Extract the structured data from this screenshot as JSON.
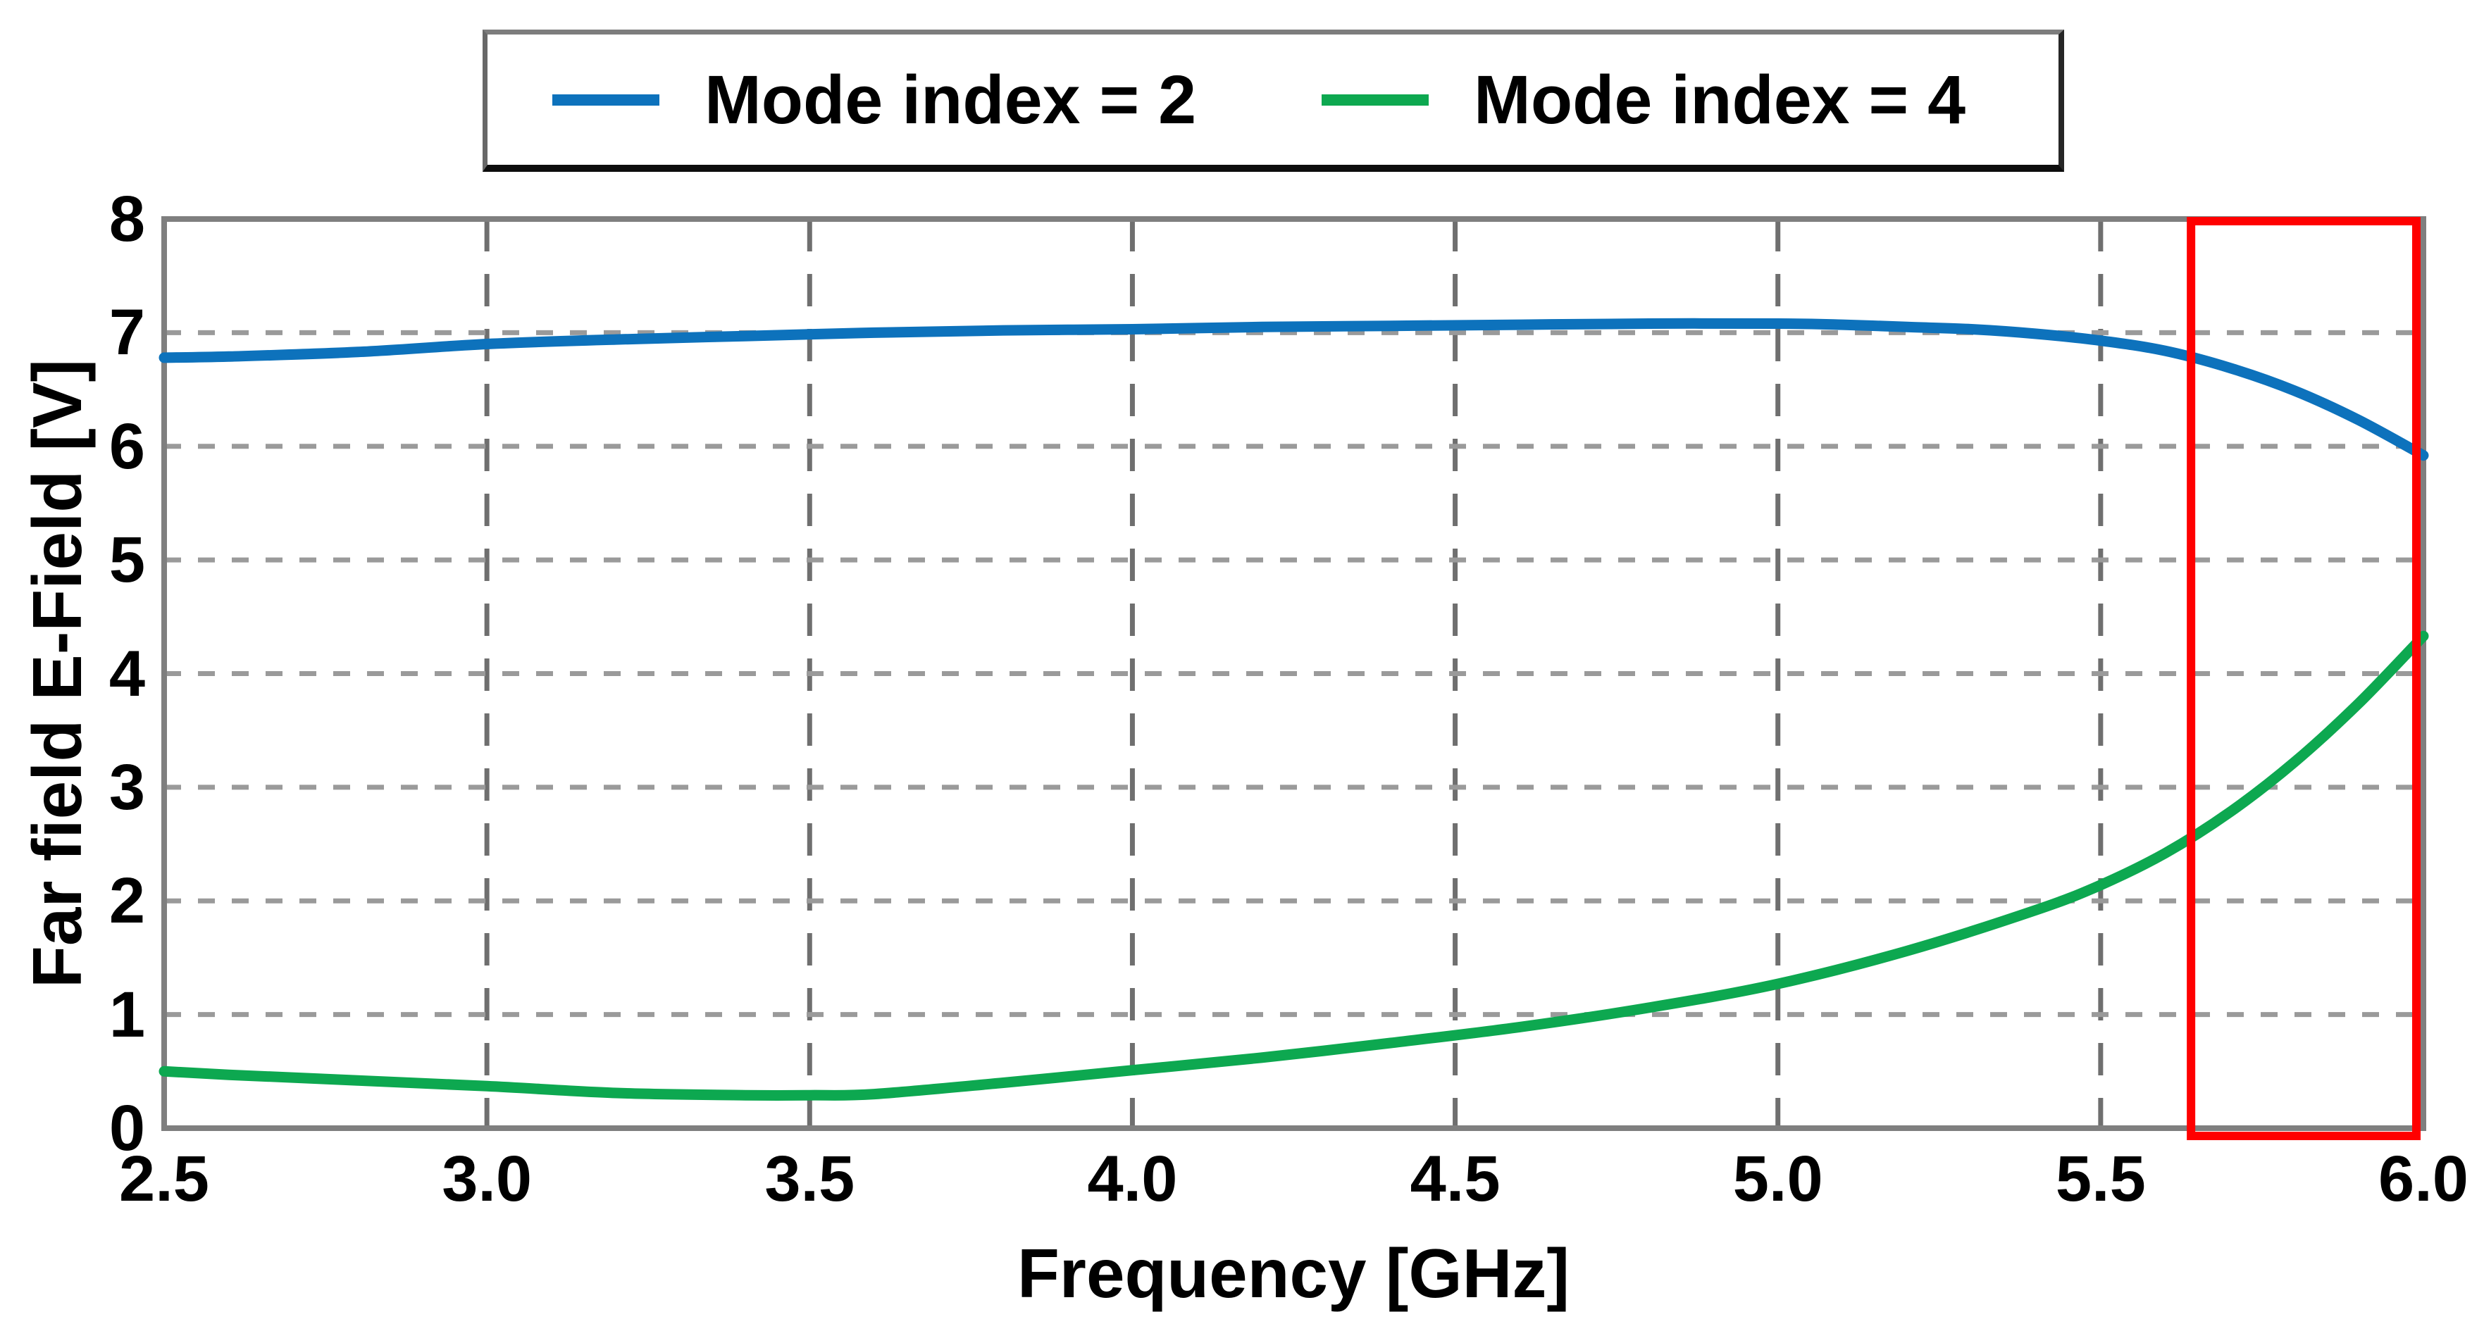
{
  "page": {
    "background": "#ffffff"
  },
  "chart_data": {
    "type": "line",
    "title": "",
    "xlabel": "Frequency [GHz]",
    "ylabel": "Far field E-Field [V]",
    "xlim": [
      2.5,
      6.0
    ],
    "ylim": [
      0,
      8
    ],
    "xticks": [
      2.5,
      3.0,
      3.5,
      4.0,
      4.5,
      5.0,
      5.5,
      6.0
    ],
    "xtick_labels": [
      "2.5",
      "3.0",
      "3.5",
      "4.0",
      "4.5",
      "5.0",
      "5.5",
      "6.0"
    ],
    "yticks": [
      0,
      1,
      2,
      3,
      4,
      5,
      6,
      7,
      8
    ],
    "ytick_labels": [
      "0",
      "1",
      "2",
      "3",
      "4",
      "5",
      "6",
      "7",
      "8"
    ],
    "grid": {
      "style": "dashed",
      "horizontal_color": "#9a9a9a",
      "vertical_color": "#6f6f6f"
    },
    "axis_border_color": "#7f7f7f",
    "legend_position": "top-center",
    "series": [
      {
        "name": "Mode index = 2",
        "color": "#0d72bc",
        "x": [
          2.5,
          2.6,
          2.8,
          3.0,
          3.2,
          3.4,
          3.6,
          3.8,
          4.0,
          4.2,
          4.4,
          4.6,
          4.8,
          5.0,
          5.1,
          5.2,
          5.3,
          5.4,
          5.5,
          5.6,
          5.7,
          5.8,
          5.9,
          6.0
        ],
        "y": [
          6.78,
          6.79,
          6.83,
          6.9,
          6.94,
          6.97,
          7.0,
          7.02,
          7.03,
          7.05,
          7.06,
          7.07,
          7.08,
          7.08,
          7.07,
          7.05,
          7.03,
          6.99,
          6.93,
          6.84,
          6.69,
          6.49,
          6.23,
          5.92
        ]
      },
      {
        "name": "Mode index = 4",
        "color": "#0da850",
        "x": [
          2.5,
          2.6,
          2.8,
          3.0,
          3.2,
          3.4,
          3.5,
          3.6,
          3.8,
          4.0,
          4.2,
          4.4,
          4.6,
          4.8,
          5.0,
          5.2,
          5.4,
          5.5,
          5.6,
          5.7,
          5.8,
          5.9,
          6.0
        ],
        "y": [
          0.5,
          0.47,
          0.42,
          0.37,
          0.31,
          0.29,
          0.29,
          0.3,
          0.4,
          0.51,
          0.62,
          0.75,
          0.89,
          1.06,
          1.27,
          1.56,
          1.92,
          2.14,
          2.42,
          2.78,
          3.22,
          3.74,
          4.33
        ]
      }
    ],
    "highlight_box": {
      "color": "#ff0000",
      "x0": 5.64,
      "x1": 6.0,
      "y0": 0,
      "y1": 8
    }
  }
}
